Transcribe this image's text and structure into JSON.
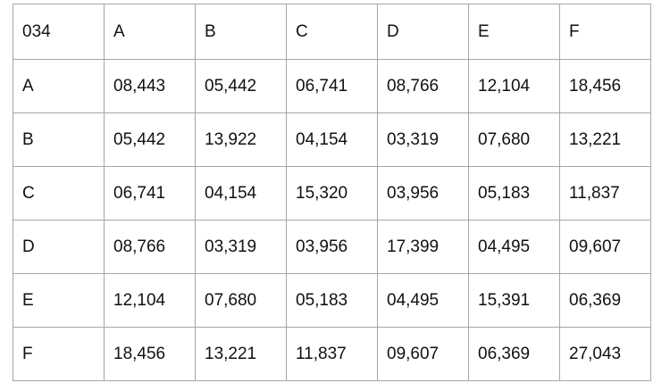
{
  "table": {
    "rows": [
      [
        "034",
        "A",
        "B",
        "C",
        "D",
        "E",
        "F"
      ],
      [
        "A",
        "08,443",
        "05,442",
        "06,741",
        "08,766",
        "12,104",
        "18,456"
      ],
      [
        "B",
        "05,442",
        "13,922",
        "04,154",
        "03,319",
        "07,680",
        "13,221"
      ],
      [
        "C",
        "06,741",
        "04,154",
        "15,320",
        "03,956",
        "05,183",
        "11,837"
      ],
      [
        "D",
        "08,766",
        "03,319",
        "03,956",
        "17,399",
        "04,495",
        "09,607"
      ],
      [
        "E",
        "12,104",
        "07,680",
        "05,183",
        "04,495",
        "15,391",
        "06,369"
      ],
      [
        "F",
        "18,456",
        "13,221",
        "11,837",
        "09,607",
        "06,369",
        "27,043"
      ]
    ]
  }
}
